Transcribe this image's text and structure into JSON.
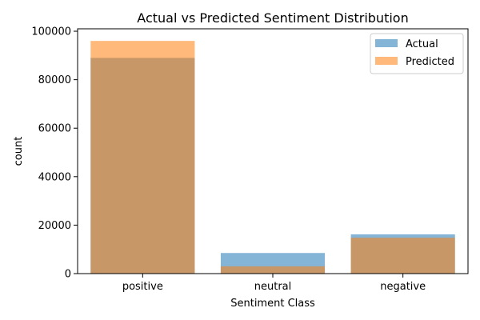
{
  "chart_data": {
    "type": "bar",
    "title": "Actual vs Predicted Sentiment Distribution",
    "xlabel": "Sentiment Class",
    "ylabel": "count",
    "categories": [
      "positive",
      "neutral",
      "negative"
    ],
    "series": [
      {
        "name": "Actual",
        "values": [
          89000,
          8500,
          16200
        ],
        "color": "#1f77b4"
      },
      {
        "name": "Predicted",
        "values": [
          96000,
          3000,
          14800
        ],
        "color": "#ff7f0e"
      }
    ],
    "overlay": true,
    "bar_alpha": 0.55,
    "ylim": [
      0,
      101000
    ],
    "yticks": [
      0,
      20000,
      40000,
      60000,
      80000,
      100000
    ],
    "grid": false,
    "legend_position": "top-right"
  }
}
